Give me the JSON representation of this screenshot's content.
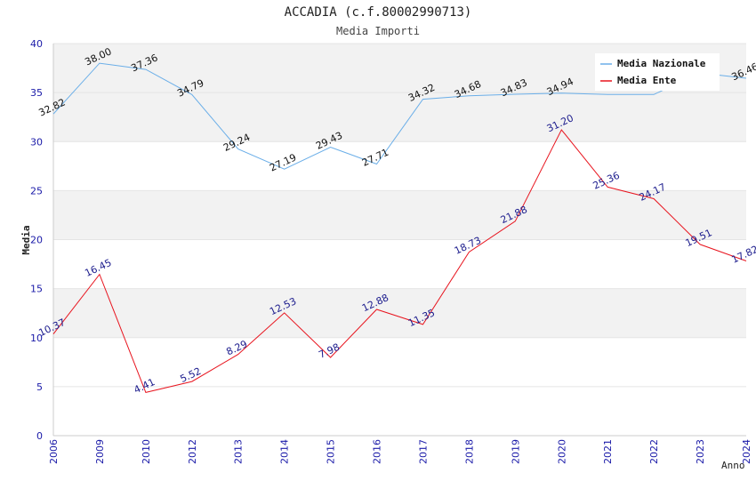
{
  "chart_data": {
    "type": "line",
    "title": "ACCADIA (c.f.80002990713)",
    "subtitle": "Media Importi",
    "xlabel": "Anno",
    "ylabel": "Media",
    "ylim": [
      0,
      40
    ],
    "yticks": [
      "0",
      "5",
      "10",
      "15",
      "20",
      "25",
      "30",
      "35",
      "40"
    ],
    "categories": [
      "2006",
      "2009",
      "2010",
      "2012",
      "2013",
      "2014",
      "2015",
      "2016",
      "2017",
      "2018",
      "2019",
      "2020",
      "2021",
      "2022",
      "2023",
      "2024"
    ],
    "grid": "horizontal bands",
    "legend_position": "top-right",
    "series": [
      {
        "name": "Media Nazionale",
        "color": "#6aaee8",
        "values": [
          32.82,
          38.0,
          37.36,
          34.79,
          29.24,
          27.19,
          29.43,
          27.71,
          34.32,
          34.68,
          34.83,
          34.94,
          34.8,
          34.8,
          37.0,
          36.46
        ],
        "labels": [
          "32.82",
          "38.00",
          "37.36",
          "34.79",
          "29.24",
          "27.19",
          "29.43",
          "27.71",
          "34.32",
          "34.68",
          "34.83",
          "34.94",
          "",
          "",
          "",
          "36.46"
        ]
      },
      {
        "name": "Media Ente",
        "color": "#e8141e",
        "values": [
          10.37,
          16.45,
          4.41,
          5.52,
          8.29,
          12.53,
          7.98,
          12.88,
          11.35,
          18.73,
          21.88,
          31.2,
          25.36,
          24.17,
          19.51,
          17.82
        ],
        "labels": [
          "10.37",
          "16.45",
          "4.41",
          "5.52",
          "8.29",
          "12.53",
          "7.98",
          "12.88",
          "11.35",
          "18.73",
          "21.88",
          "31.20",
          "25.36",
          "24.17",
          "19.51",
          "17.82"
        ]
      }
    ]
  }
}
